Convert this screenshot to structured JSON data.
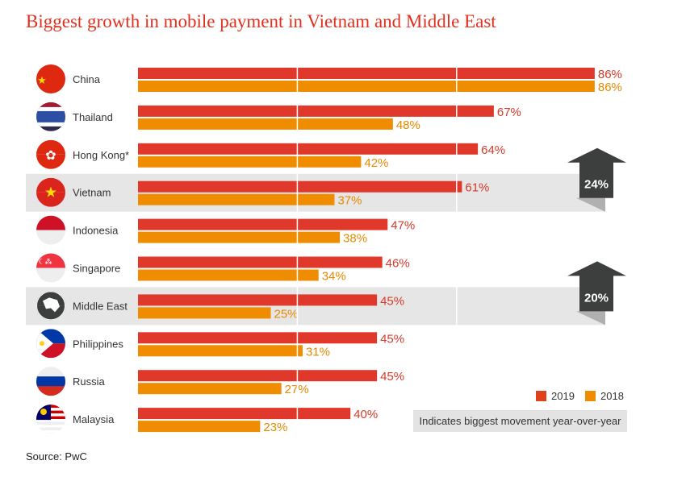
{
  "chart_data": {
    "type": "bar",
    "orientation": "horizontal",
    "title": "Biggest growth in mobile payment in Vietnam and Middle East",
    "categories": [
      "China",
      "Thailand",
      "Hong Kong*",
      "Vietnam",
      "Indonesia",
      "Singapore",
      "Middle East",
      "Philippines",
      "Russia",
      "Malaysia"
    ],
    "series": [
      {
        "name": "2019",
        "color": "#e0392b",
        "values": [
          86,
          67,
          64,
          61,
          47,
          46,
          45,
          45,
          45,
          40
        ]
      },
      {
        "name": "2018",
        "color": "#f08c00",
        "values": [
          86,
          48,
          42,
          37,
          38,
          34,
          25,
          31,
          27,
          23
        ]
      }
    ],
    "value_suffix": "%",
    "xlim": [
      0,
      90
    ],
    "grid": true,
    "gridlines": [
      30,
      60
    ],
    "legend": "bottom-right",
    "highlighted": [
      {
        "category": "Vietnam",
        "movement": "24%"
      },
      {
        "category": "Middle East",
        "movement": "20%"
      }
    ],
    "note": "Indicates biggest movement year-over-year",
    "source": "Source: PwC"
  },
  "colors": {
    "highlight_band": "#e6e6e6",
    "arrow": "#3d3f3f",
    "title": "#e0301e"
  }
}
